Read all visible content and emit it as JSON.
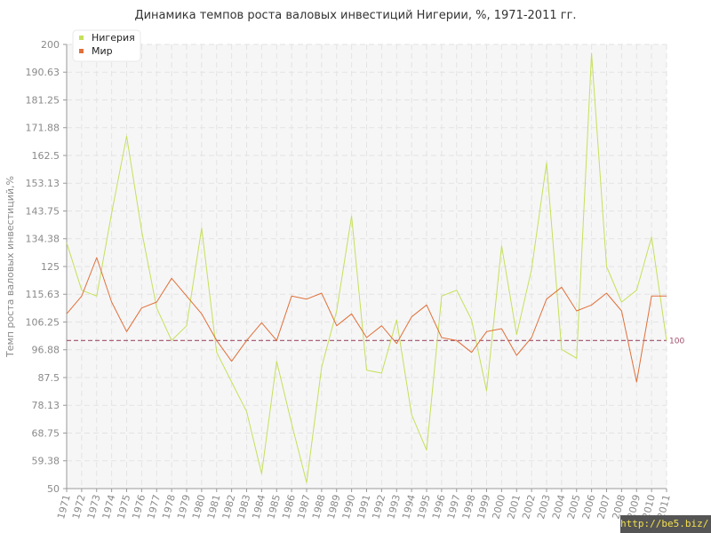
{
  "chart_data": {
    "type": "line",
    "title": "Динамика темпов роста валовых инвестиций Нигерии, %, 1971-2011 гг.",
    "xlabel": "",
    "ylabel": "Темп роста валовых инвестиций,%",
    "ylim": [
      50,
      200
    ],
    "yticks": [
      "50",
      "59.38",
      "68.75",
      "78.13",
      "87.5",
      "96.88",
      "106.25",
      "115.63",
      "125",
      "134.38",
      "143.75",
      "153.13",
      "162.5",
      "171.88",
      "181.25",
      "190.63",
      "200"
    ],
    "categories": [
      "1971",
      "1972",
      "1973",
      "1974",
      "1975",
      "1976",
      "1977",
      "1978",
      "1979",
      "1980",
      "1981",
      "1982",
      "1983",
      "1984",
      "1985",
      "1986",
      "1987",
      "1988",
      "1989",
      "1990",
      "1991",
      "1992",
      "1993",
      "1994",
      "1995",
      "1996",
      "1997",
      "1998",
      "1999",
      "2000",
      "2001",
      "2002",
      "2003",
      "2004",
      "2005",
      "2006",
      "2007",
      "2008",
      "2009",
      "2010",
      "2011"
    ],
    "series": [
      {
        "name": "Нигерия",
        "color": "#c5e05a",
        "values": [
          133,
          117,
          115,
          143,
          169,
          137,
          111,
          100,
          105,
          138,
          96,
          86,
          76,
          55,
          93,
          72,
          52,
          91,
          110,
          142,
          90,
          89,
          107,
          75,
          63,
          115,
          117,
          107,
          83,
          132,
          102,
          124,
          160,
          97,
          94,
          197,
          125,
          113,
          117,
          135,
          100
        ]
      },
      {
        "name": "Мир",
        "color": "#e0703a",
        "values": [
          109,
          115,
          128,
          113,
          103,
          111,
          113,
          121,
          115,
          109,
          100,
          93,
          100,
          106,
          100,
          115,
          114,
          116,
          105,
          109,
          101,
          105,
          99,
          108,
          112,
          101,
          100,
          96,
          103,
          104,
          95,
          101,
          114,
          118,
          110,
          112,
          116,
          110,
          86,
          115,
          115
        ]
      }
    ],
    "reference_line": {
      "value": 100,
      "label": "100",
      "color": "#a0506a"
    },
    "grid": true,
    "legend_position": "top-left"
  },
  "watermark": "http://be5.biz/"
}
